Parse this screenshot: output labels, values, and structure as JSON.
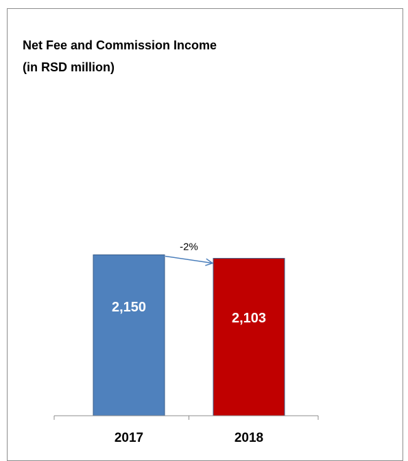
{
  "chart_data": {
    "type": "bar",
    "title_lines": [
      "Net Fee and Commission Income",
      "(in RSD million)"
    ],
    "categories": [
      "2017",
      "2018"
    ],
    "values": [
      2150,
      2103
    ],
    "value_labels": [
      "2,150",
      "2,103"
    ],
    "colors": [
      "#4f81bd",
      "#c00000"
    ],
    "value_label_bg": [
      "#4f81bd",
      "#c00000"
    ],
    "annotation": "-2%",
    "ylim": [
      0,
      3850
    ],
    "grid": false,
    "legend": "none"
  }
}
